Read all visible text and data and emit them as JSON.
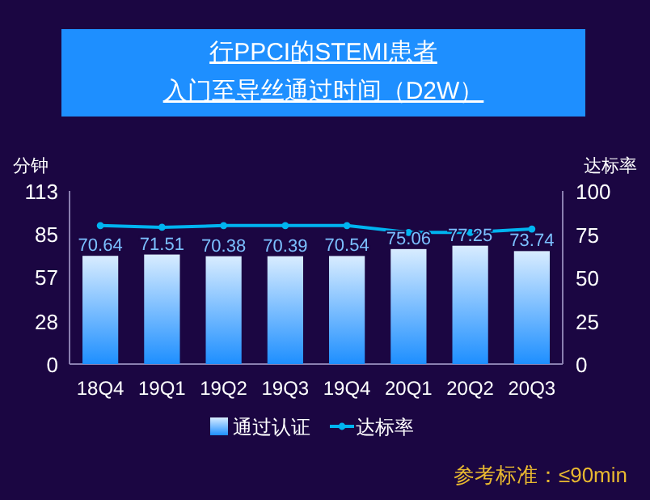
{
  "chart_data": {
    "type": "bar",
    "title": "行PPCI的STEMI患者",
    "subtitle": "入门至导丝通过时间（D2W）",
    "ylabel": "分钟",
    "y2label": "达标率",
    "categories": [
      "18Q4",
      "19Q1",
      "19Q2",
      "19Q3",
      "19Q4",
      "20Q1",
      "20Q2",
      "20Q3"
    ],
    "series": [
      {
        "name": "通过认证",
        "color": "#1e8fff",
        "values": [
          70.64,
          71.51,
          70.38,
          70.39,
          70.54,
          75.06,
          77.25,
          73.74
        ],
        "value_labels": [
          "70.64",
          "71.51",
          "70.38",
          "70.39",
          "70.54",
          "75.06",
          "77.25",
          "73.74"
        ]
      },
      {
        "name": "达标率",
        "type": "line",
        "axis": "y2",
        "color": "#00b4f0",
        "values": [
          80,
          79,
          80,
          80,
          80,
          76,
          76,
          78
        ]
      }
    ],
    "ylim": [
      0,
      113
    ],
    "yticks": [
      0,
      28,
      57,
      85,
      113
    ],
    "y2lim": [
      0,
      100
    ],
    "y2ticks": [
      0,
      25,
      50,
      75,
      100
    ],
    "legend": "bottom",
    "marker": "circle",
    "grid": false,
    "annotations": [
      "参考标准：≤90min"
    ]
  }
}
